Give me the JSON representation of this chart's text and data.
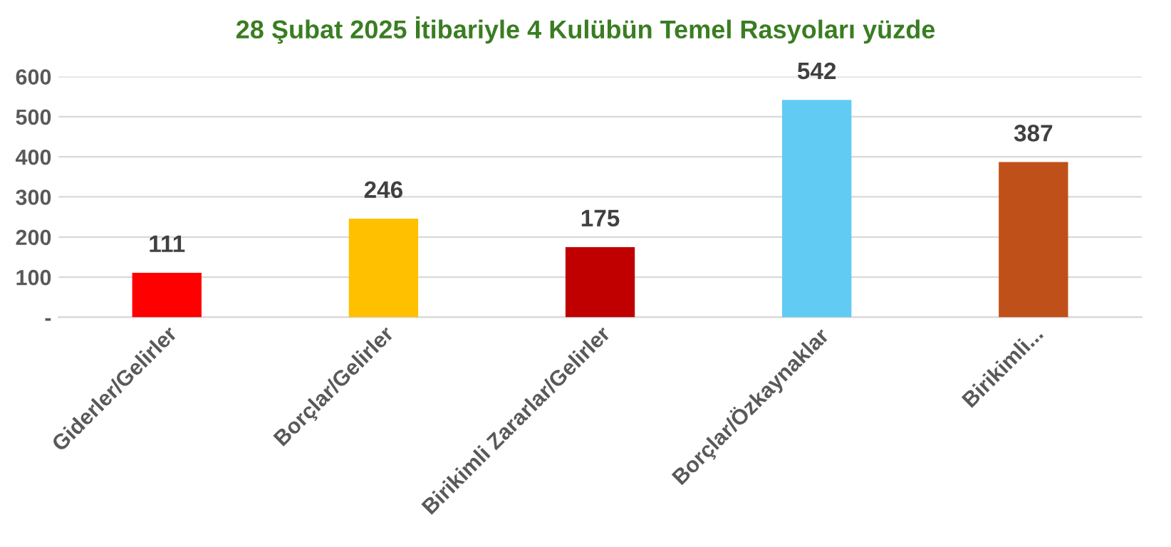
{
  "chart_data": {
    "type": "bar",
    "title": "28 Şubat 2025 İtibariyle 4 Kulübün Temel Rasyoları yüzde",
    "categories": [
      "Giderler/Gelirler",
      "Borçlar/Gelirler",
      "Birikimli Zararlar/Gelirler",
      "Borçlar/Özkaynaklar",
      "Birikimli..."
    ],
    "values": [
      111,
      246,
      175,
      542,
      387
    ],
    "colors": [
      "#ff0000",
      "#ffc000",
      "#c00000",
      "#61cbf3",
      "#c0501a"
    ],
    "value_labels": [
      "111",
      "246",
      "175",
      "542",
      "387"
    ],
    "ylim": [
      0,
      600
    ],
    "yticks": [
      {
        "value": 0,
        "label": "-"
      },
      100,
      200,
      300,
      400,
      500,
      600
    ],
    "grid": "y"
  }
}
